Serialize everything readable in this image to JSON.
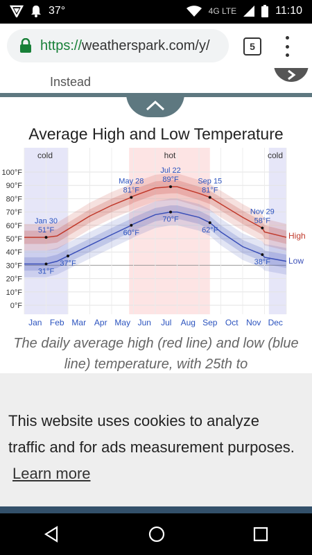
{
  "status_bar": {
    "temperature": "37°",
    "network": "4G LTE",
    "time": "11:10"
  },
  "browser": {
    "url_scheme": "https://",
    "url_rest": "weatherspark.com/y/",
    "tab_count": "5"
  },
  "top_section": {
    "text": "Instead"
  },
  "chart": {
    "title": "Average High and Low Temperature",
    "caption": "The daily average high (red line) and low (blue line) temperature, with 25th to",
    "season_labels": {
      "cold1": "cold",
      "hot": "hot",
      "cold2": "cold"
    },
    "legend": {
      "high": "High",
      "low": "Low"
    }
  },
  "chart_data": {
    "type": "line",
    "y_ticks": [
      "100°F",
      "90°F",
      "80°F",
      "70°F",
      "60°F",
      "50°F",
      "40°F",
      "30°F",
      "20°F",
      "10°F",
      "0°F"
    ],
    "ylim": [
      0,
      100
    ],
    "months": [
      "Jan",
      "Feb",
      "Mar",
      "Apr",
      "May",
      "Jun",
      "Jul",
      "Aug",
      "Sep",
      "Oct",
      "Nov",
      "Dec"
    ],
    "series": [
      {
        "name": "High",
        "x": [
          0,
          1,
          1.5,
          2,
          3,
          4,
          4.9,
          5,
          6,
          6.7,
          7,
          8,
          8.5,
          9,
          10,
          10.9,
          11,
          12
        ],
        "values": [
          51,
          51,
          52,
          57,
          67,
          75,
          81,
          82,
          88,
          89,
          89,
          84,
          81,
          76,
          66,
          58,
          55,
          51
        ]
      },
      {
        "name": "Low",
        "x": [
          0,
          1,
          1.5,
          2,
          3,
          4,
          4.9,
          5,
          6,
          6.7,
          7,
          8,
          8.5,
          9,
          10,
          10.9,
          11,
          12
        ],
        "values": [
          31,
          31,
          33,
          37,
          45,
          53,
          60,
          61,
          68,
          70,
          70,
          66,
          62,
          55,
          44,
          38,
          36,
          33
        ]
      }
    ],
    "annotations": [
      {
        "label_top": "Jan 30",
        "label_bottom": "51°F",
        "series": "High",
        "x": 1,
        "value": 51
      },
      {
        "label_top": "May 28",
        "label_bottom": "81°F",
        "series": "High",
        "x": 4.9,
        "value": 81
      },
      {
        "label_top": "Jul 22",
        "label_bottom": "89°F",
        "series": "High",
        "x": 6.7,
        "value": 89
      },
      {
        "label_top": "Sep 15",
        "label_bottom": "81°F",
        "series": "High",
        "x": 8.5,
        "value": 81
      },
      {
        "label_top": "Nov 29",
        "label_bottom": "58°F",
        "series": "High",
        "x": 10.9,
        "value": 58
      },
      {
        "label_top": "31°F",
        "label_bottom": "",
        "series": "Low",
        "x": 1,
        "value": 31
      },
      {
        "label_top": "37°F",
        "label_bottom": "",
        "series": "Low",
        "x": 2,
        "value": 37
      },
      {
        "label_top": "60°F",
        "label_bottom": "",
        "series": "Low",
        "x": 4.9,
        "value": 60
      },
      {
        "label_top": "70°F",
        "label_bottom": "",
        "series": "Low",
        "x": 6.7,
        "value": 70
      },
      {
        "label_top": "62°F",
        "label_bottom": "",
        "series": "Low",
        "x": 8.5,
        "value": 62
      },
      {
        "label_top": "38°F",
        "label_bottom": "",
        "series": "Low",
        "x": 10.9,
        "value": 38
      }
    ],
    "seasons": [
      {
        "label": "cold",
        "start": 0,
        "end": 2
      },
      {
        "label": "hot",
        "start": 4.8,
        "end": 8.5
      },
      {
        "label": "cold",
        "start": 11.2,
        "end": 12
      }
    ],
    "colors": {
      "high": "#c0392b",
      "low": "#3a4fb8",
      "hot_band": "#fde4e4",
      "cold_band": "#e6e6f8"
    }
  },
  "cookie_banner": {
    "text": "This website uses cookies to analyze traffic and for ads measurement purposes.",
    "link": "Learn more"
  }
}
